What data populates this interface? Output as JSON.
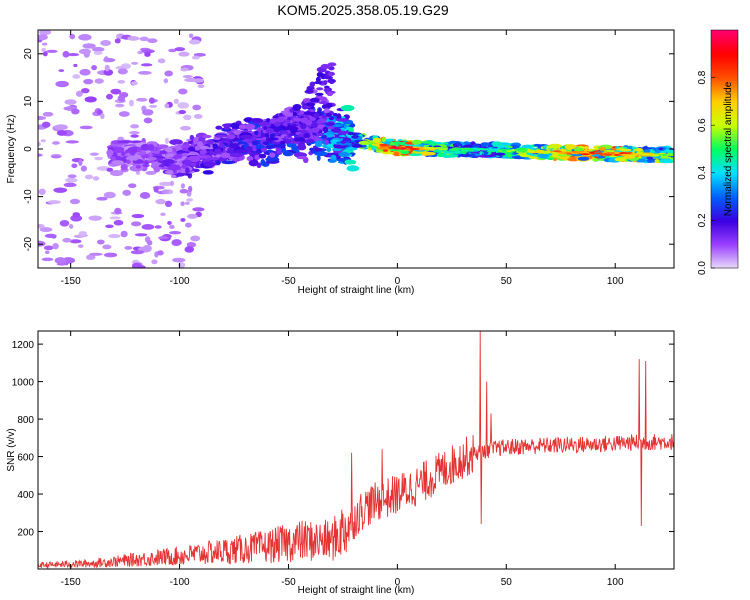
{
  "figure_title": "KOM5.2025.358.05.19.G29",
  "chart_data": [
    {
      "type": "heatmap",
      "xlabel": "Height of straight line (km)",
      "ylabel": "Frequency (Hz)",
      "xlim": [
        -165,
        127
      ],
      "ylim": [
        -25,
        25
      ],
      "xticks": [
        -150,
        -100,
        -50,
        0,
        50,
        100
      ],
      "yticks": [
        -20,
        -10,
        0,
        10,
        20
      ],
      "colorbar": {
        "label": "Normalized spectral amplitude",
        "range": [
          0,
          1
        ],
        "ticks": [
          0.0,
          0.2,
          0.4,
          0.6,
          0.8
        ],
        "colormap": [
          "#e8ddf8",
          "#9a40ff",
          "#3a00e0",
          "#0060ff",
          "#00e0ff",
          "#00ff60",
          "#c8ff00",
          "#ffd000",
          "#ff5000",
          "#ff0000",
          "#ff0070"
        ]
      },
      "ridge": [
        {
          "x": -120,
          "f": -1.0,
          "a": 0.1
        },
        {
          "x": -100,
          "f": -2.5,
          "a": 0.14
        },
        {
          "x": -80,
          "f": 0.5,
          "a": 0.18
        },
        {
          "x": -60,
          "f": 2.0,
          "a": 0.22
        },
        {
          "x": -40,
          "f": 3.5,
          "a": 0.24
        },
        {
          "x": -25,
          "f": 2.5,
          "a": 0.35
        },
        {
          "x": -10,
          "f": 1.0,
          "a": 0.7
        },
        {
          "x": 0,
          "f": 0.3,
          "a": 0.95
        },
        {
          "x": 20,
          "f": 0.0,
          "a": 0.55
        },
        {
          "x": 40,
          "f": -0.2,
          "a": 0.45
        },
        {
          "x": 60,
          "f": -0.5,
          "a": 0.6
        },
        {
          "x": 80,
          "f": -0.8,
          "a": 0.8
        },
        {
          "x": 100,
          "f": -1.0,
          "a": 0.85
        },
        {
          "x": 120,
          "f": -1.2,
          "a": 0.6
        }
      ],
      "upper_branch": [
        {
          "x": -60,
          "f": 5
        },
        {
          "x": -45,
          "f": 9
        },
        {
          "x": -35,
          "f": 15
        },
        {
          "x": -30,
          "f": 19
        }
      ]
    },
    {
      "type": "line",
      "xlabel": "Height of straight line (km)",
      "ylabel": "SNR (v/v)",
      "xlim": [
        -165,
        127
      ],
      "ylim": [
        0,
        1270
      ],
      "xticks": [
        -150,
        -100,
        -50,
        0,
        50,
        100
      ],
      "yticks": [
        200,
        400,
        600,
        800,
        1000,
        1200
      ],
      "color": "#e53333",
      "trend": [
        {
          "x": -165,
          "y": 20
        },
        {
          "x": -140,
          "y": 30
        },
        {
          "x": -120,
          "y": 50
        },
        {
          "x": -100,
          "y": 70
        },
        {
          "x": -80,
          "y": 95
        },
        {
          "x": -60,
          "y": 120
        },
        {
          "x": -45,
          "y": 150
        },
        {
          "x": -30,
          "y": 150
        },
        {
          "x": -22,
          "y": 240
        },
        {
          "x": -15,
          "y": 330
        },
        {
          "x": 0,
          "y": 400
        },
        {
          "x": 10,
          "y": 450
        },
        {
          "x": 20,
          "y": 520
        },
        {
          "x": 30,
          "y": 590
        },
        {
          "x": 38,
          "y": 630
        },
        {
          "x": 50,
          "y": 650
        },
        {
          "x": 70,
          "y": 660
        },
        {
          "x": 90,
          "y": 665
        },
        {
          "x": 110,
          "y": 675
        },
        {
          "x": 127,
          "y": 680
        }
      ],
      "spikes": [
        {
          "x": -21,
          "y": 620
        },
        {
          "x": -7,
          "y": 640
        },
        {
          "x": 38,
          "y": 1270
        },
        {
          "x": 38.5,
          "y": 240
        },
        {
          "x": 41,
          "y": 1000
        },
        {
          "x": 43,
          "y": 830
        },
        {
          "x": 111,
          "y": 1120
        },
        {
          "x": 112,
          "y": 230
        },
        {
          "x": 114,
          "y": 1110
        }
      ]
    }
  ]
}
